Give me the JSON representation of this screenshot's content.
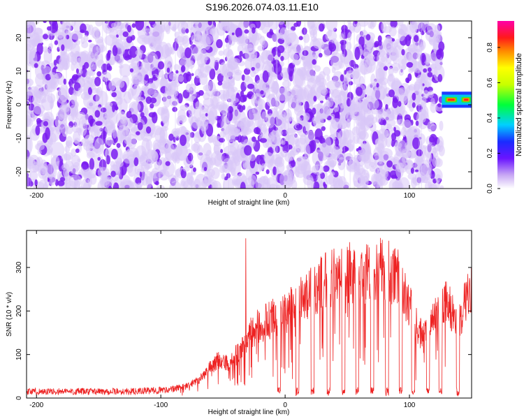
{
  "title": "S196.2026.074.03.11.E10",
  "colors": {
    "spectrogram_purple": "#7a1cf0",
    "spectrogram_light": "#d8c6f8",
    "snr_line": "#ee2222",
    "axis": "#000000"
  },
  "chart_data": [
    {
      "type": "heatmap",
      "name": "spectrogram",
      "xlabel": "Height of straight line (km)",
      "ylabel": "Frequency (Hz)",
      "xlim": [
        -208,
        150
      ],
      "ylim": [
        -25,
        25
      ],
      "xticks": [
        -200,
        -100,
        0,
        100
      ],
      "yticks": [
        -20,
        -10,
        0,
        10,
        20
      ],
      "noise_band": {
        "x_range": [
          -208,
          126
        ],
        "y_range": [
          -25,
          25
        ],
        "colormap_level": 0.3
      },
      "signal_band": {
        "x_range": [
          126,
          150
        ],
        "frequency_hz": 1.5,
        "half_width_hz": 1.5,
        "peak_amplitude": 0.95
      },
      "colorbar": {
        "label": "Normalized spectral amplitude",
        "range": [
          0,
          0.95
        ],
        "ticks": [
          0.0,
          0.2,
          0.4,
          0.6,
          0.8
        ],
        "tick_labels": [
          "0.0",
          "0.2",
          "0.4",
          "0.6",
          "0.8"
        ]
      }
    },
    {
      "type": "line",
      "name": "snr",
      "xlabel": "Height of straight line (km)",
      "ylabel": "SNR (10 * v/v)",
      "xlim": [
        -208,
        150
      ],
      "ylim": [
        0,
        385
      ],
      "xticks": [
        -200,
        -100,
        0,
        100
      ],
      "yticks": [
        0,
        100,
        200,
        300
      ],
      "series": [
        {
          "name": "SNR",
          "x": [
            -208,
            -180,
            -150,
            -120,
            -90,
            -75,
            -65,
            -55,
            -45,
            -35,
            -30,
            -20,
            -10,
            -5,
            0,
            10,
            20,
            30,
            40,
            50,
            60,
            70,
            80,
            90,
            100,
            105,
            110,
            115,
            120,
            125,
            130,
            135,
            140,
            145,
            150
          ],
          "y": [
            15,
            15,
            15,
            15,
            20,
            35,
            55,
            90,
            80,
            120,
            150,
            175,
            190,
            190,
            200,
            230,
            250,
            280,
            290,
            300,
            295,
            300,
            310,
            290,
            220,
            180,
            150,
            160,
            200,
            200,
            230,
            200,
            180,
            230,
            260
          ]
        }
      ],
      "dips_x": [
        -5,
        10,
        22,
        35,
        47,
        58,
        70,
        82,
        93,
        103,
        115,
        125,
        139
      ]
    }
  ]
}
